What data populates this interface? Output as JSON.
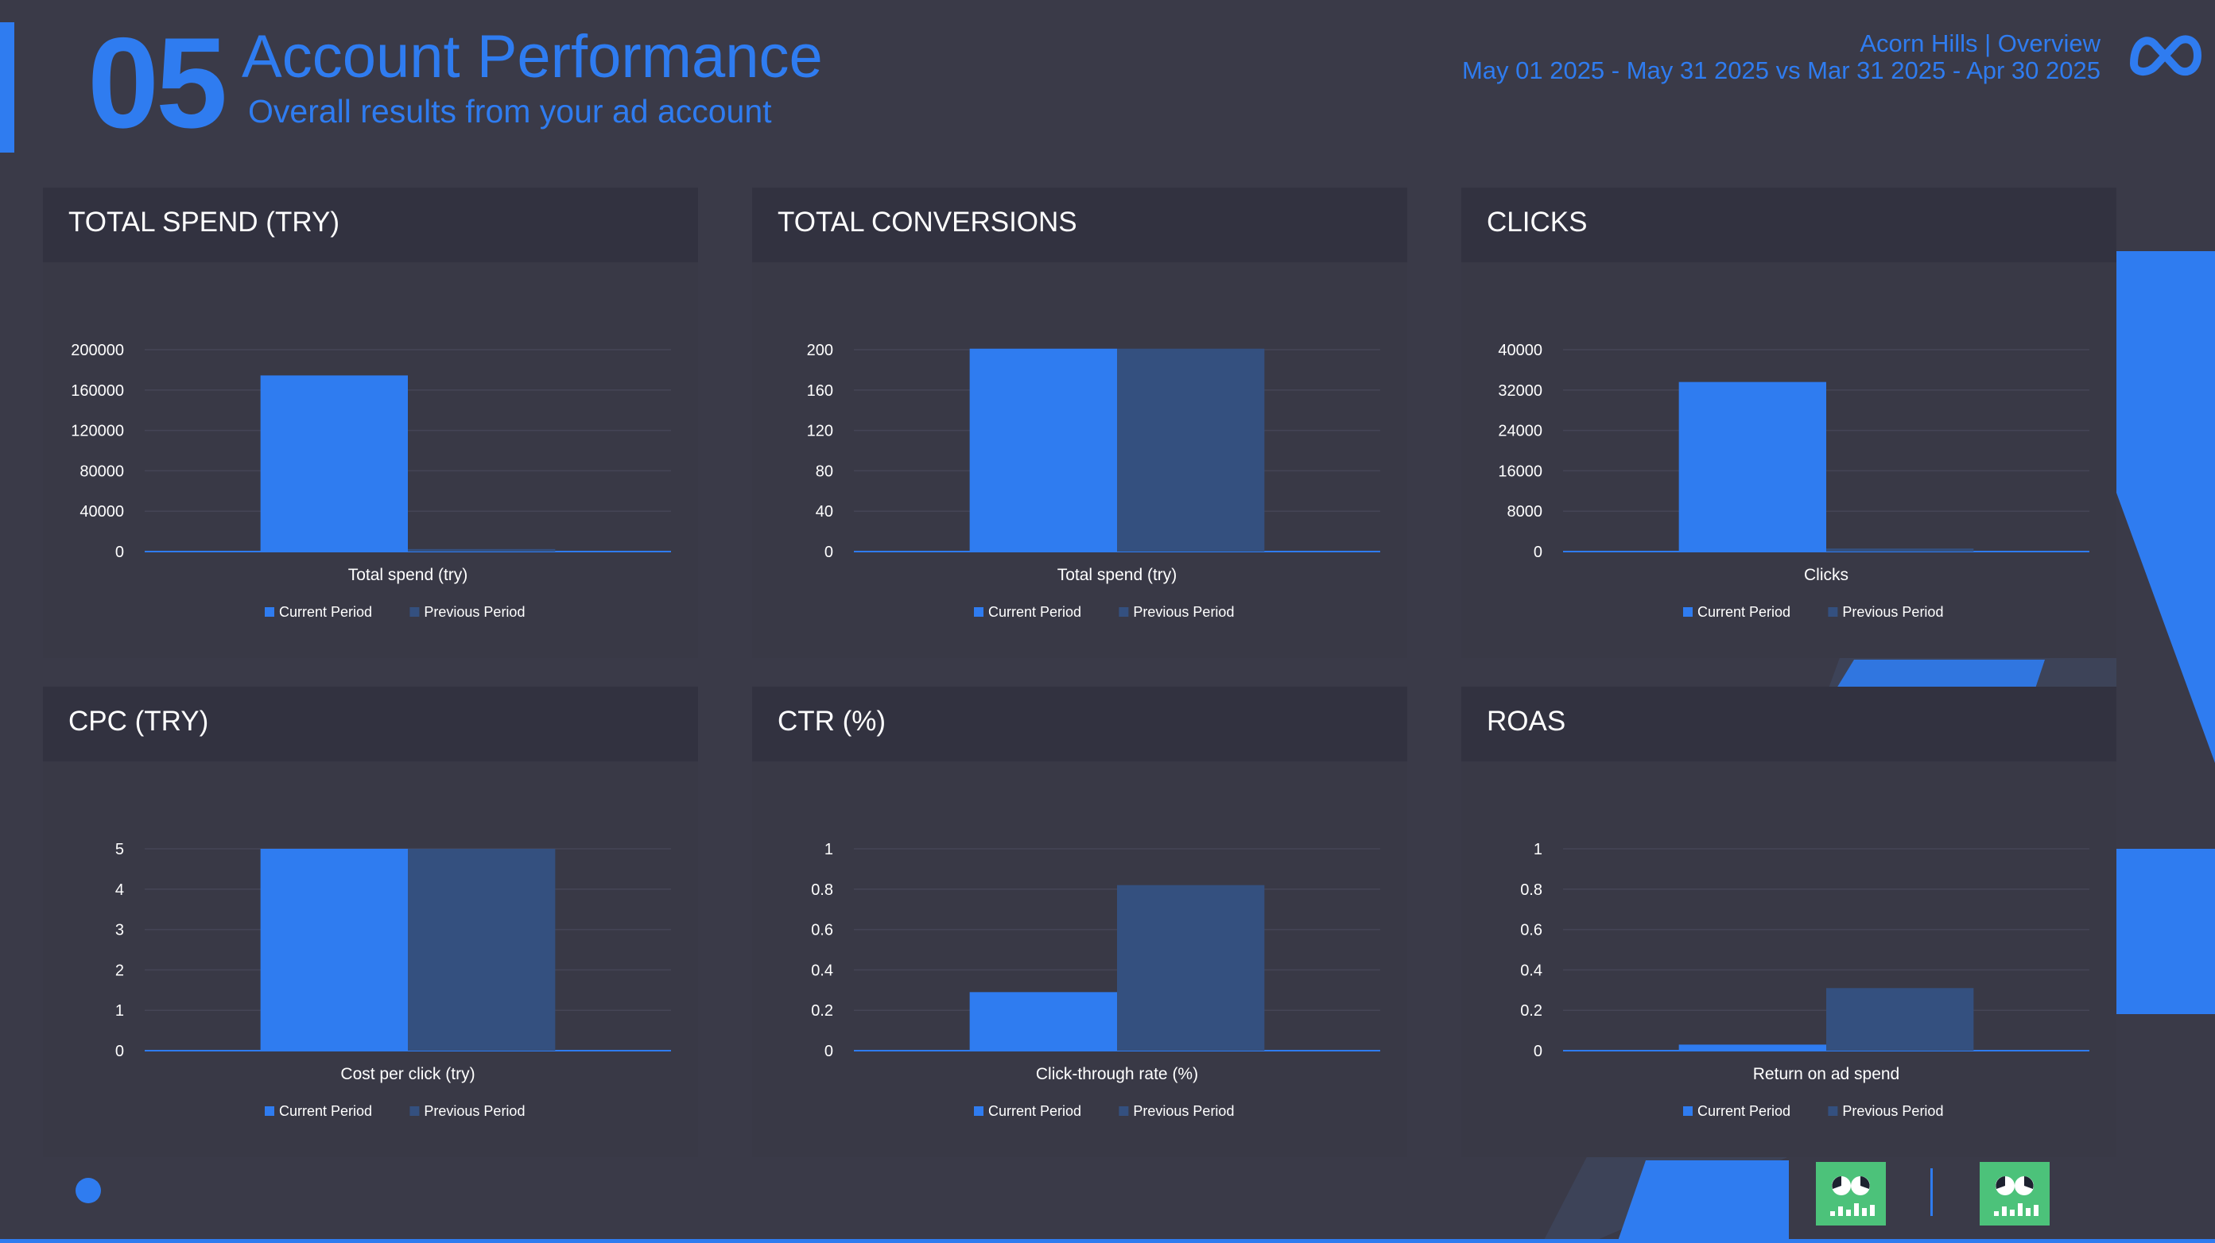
{
  "header": {
    "number": "05",
    "title": "Account Performance",
    "subtitle": "Overall results from your ad account",
    "account": "Acorn Hills | Overview",
    "date_range": "May 01 2025 - May 31 2025 vs Mar 31 2025 - Apr 30 2025"
  },
  "colors": {
    "current": "#2f7cf0",
    "previous": "#34507f",
    "axis_text": "#ffffff",
    "grid": "#454556"
  },
  "icons": {
    "brand": "meta-logo-icon",
    "decoration": "dot-icon",
    "app_logos": [
      "app-logo-icon",
      "app-logo-icon"
    ]
  },
  "chart_data": [
    {
      "type": "bar",
      "title": "TOTAL SPEND (TRY)",
      "categories": [
        "Total spend (try)"
      ],
      "series": [
        {
          "name": "Current Period",
          "values": [
            174500
          ]
        },
        {
          "name": "Previous Period",
          "values": [
            2500
          ]
        }
      ],
      "yticks": [
        0,
        40000,
        80000,
        120000,
        160000,
        200000
      ],
      "ylim": [
        0,
        200000
      ],
      "legend": "bottom"
    },
    {
      "type": "bar",
      "title": "TOTAL CONVERSIONS",
      "categories": [
        "Total spend (try)"
      ],
      "series": [
        {
          "name": "Current Period",
          "values": [
            201
          ]
        },
        {
          "name": "Previous Period",
          "values": [
            201
          ]
        }
      ],
      "yticks": [
        0,
        40,
        80,
        120,
        160,
        200
      ],
      "ylim": [
        0,
        200
      ],
      "legend": "bottom"
    },
    {
      "type": "bar",
      "title": "CLICKS",
      "categories": [
        "Clicks"
      ],
      "series": [
        {
          "name": "Current Period",
          "values": [
            33600
          ]
        },
        {
          "name": "Previous Period",
          "values": [
            600
          ]
        }
      ],
      "yticks": [
        0,
        8000,
        16000,
        24000,
        32000,
        40000
      ],
      "ylim": [
        0,
        40000
      ],
      "legend": "bottom"
    },
    {
      "type": "bar",
      "title": "CPC (TRY)",
      "categories": [
        "Cost per click (try)"
      ],
      "series": [
        {
          "name": "Current Period",
          "values": [
            5
          ]
        },
        {
          "name": "Previous Period",
          "values": [
            5
          ]
        }
      ],
      "yticks": [
        0,
        1,
        2,
        3,
        4,
        5
      ],
      "ylim": [
        0,
        5
      ],
      "legend": "bottom"
    },
    {
      "type": "bar",
      "title": "CTR (%)",
      "categories": [
        "Click-through rate (%)"
      ],
      "series": [
        {
          "name": "Current Period",
          "values": [
            0.29
          ]
        },
        {
          "name": "Previous Period",
          "values": [
            0.82
          ]
        }
      ],
      "yticks": [
        0,
        0.2,
        0.4,
        0.6,
        0.8,
        1
      ],
      "ylim": [
        0,
        1
      ],
      "legend": "bottom"
    },
    {
      "type": "bar",
      "title": "ROAS",
      "categories": [
        "Return on ad spend"
      ],
      "series": [
        {
          "name": "Current Period",
          "values": [
            0.03
          ]
        },
        {
          "name": "Previous Period",
          "values": [
            0.31
          ]
        }
      ],
      "yticks": [
        0,
        0.2,
        0.4,
        0.6,
        0.8,
        1
      ],
      "ylim": [
        0,
        1
      ],
      "legend": "bottom"
    }
  ]
}
